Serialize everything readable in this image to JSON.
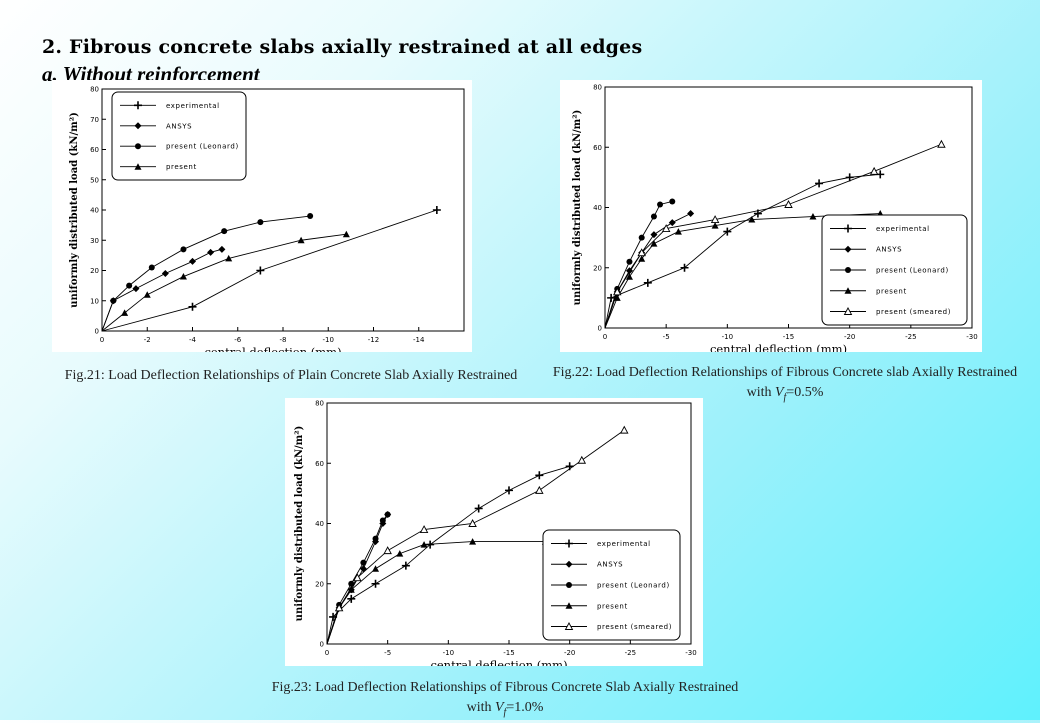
{
  "slide": {
    "title": "2. Fibrous concrete slabs axially restrained at all edges",
    "subtitle": "a. Without reinforcement"
  },
  "captions": [
    {
      "text": "Fig.21: Load Deflection Relationships of Plain Concrete Slab Axially Restrained",
      "var": "",
      "tail": ""
    },
    {
      "text": "Fig.22: Load Deflection Relationships of Fibrous Concrete slab Axially Restrained with ",
      "var": "V",
      "sub": "f",
      "tail": "=0.5%"
    },
    {
      "text": "Fig.23: Load Deflection Relationships of Fibrous Concrete Slab Axially Restrained with ",
      "var": "V",
      "sub": "f",
      "tail": "=1.0%"
    }
  ],
  "colors": {
    "line": "#000000",
    "panel_bg": "#ffffff"
  },
  "chart_data": [
    {
      "type": "line",
      "xlabel": "central deflection (mm)",
      "ylabel": "uniformly distributed load (kN/m²)",
      "xlim": [
        0,
        -16
      ],
      "ylim": [
        0,
        80
      ],
      "xticks": [
        0,
        -2,
        -4,
        -6,
        -8,
        -10,
        -12,
        -14
      ],
      "xtick_labels": [
        "0",
        "-2",
        "-4",
        "-6",
        "-8",
        "-10",
        "-12",
        "-14"
      ],
      "yticks": [
        0,
        10,
        20,
        30,
        40,
        50,
        60,
        70,
        80
      ],
      "ytick_labels": [
        "0",
        "10",
        "20",
        "30",
        "40",
        "50",
        "60",
        "70",
        "80"
      ],
      "legend_position": "top-left",
      "series": [
        {
          "name": "experimental",
          "marker": "plus",
          "x": [
            0,
            -4,
            -7,
            -14.8
          ],
          "y": [
            0,
            8,
            20,
            40
          ]
        },
        {
          "name": "ANSYS",
          "marker": "diamond",
          "x": [
            0,
            -0.5,
            -1.5,
            -2.8,
            -4.0,
            -4.8,
            -5.3
          ],
          "y": [
            0,
            10,
            14,
            19,
            23,
            26,
            27
          ]
        },
        {
          "name": "present (Leonard)",
          "marker": "circle",
          "x": [
            0,
            -0.5,
            -1.2,
            -2.2,
            -3.6,
            -5.4,
            -7.0,
            -9.2
          ],
          "y": [
            0,
            10,
            15,
            21,
            27,
            33,
            36,
            38
          ]
        },
        {
          "name": "present",
          "marker": "triangle",
          "x": [
            0,
            -1.0,
            -2.0,
            -3.6,
            -5.6,
            -8.8,
            -10.8
          ],
          "y": [
            0,
            6,
            12,
            18,
            24,
            30,
            32
          ]
        }
      ]
    },
    {
      "type": "line",
      "xlabel": "central deflection (mm)",
      "ylabel": "uniformly distributed load (kN/m²)",
      "xlim": [
        0,
        -30
      ],
      "ylim": [
        0,
        80
      ],
      "xticks": [
        0,
        -5,
        -10,
        -15,
        -20,
        -25,
        -30
      ],
      "xtick_labels": [
        "0",
        "-5",
        "-10",
        "-15",
        "-20",
        "-25",
        "-30"
      ],
      "yticks": [
        0,
        20,
        40,
        60,
        80
      ],
      "ytick_labels": [
        "0",
        "20",
        "40",
        "60",
        "80"
      ],
      "legend_position": "bottom-right",
      "series": [
        {
          "name": "experimental",
          "marker": "plus",
          "x": [
            0,
            -0.5,
            -3.5,
            -6.5,
            -10,
            -12.5,
            -17.5,
            -20,
            -22.5
          ],
          "y": [
            0,
            10,
            15,
            20,
            32,
            38,
            48,
            50,
            51
          ]
        },
        {
          "name": "ANSYS",
          "marker": "diamond",
          "x": [
            0,
            -1,
            -2,
            -3,
            -4,
            -5.5,
            -7
          ],
          "y": [
            0,
            12,
            19,
            25,
            31,
            35,
            38
          ]
        },
        {
          "name": "present (Leonard)",
          "marker": "circle",
          "x": [
            0,
            -1,
            -2,
            -3,
            -4,
            -4.5,
            -5.5
          ],
          "y": [
            0,
            13,
            22,
            30,
            37,
            41,
            42
          ]
        },
        {
          "name": "present",
          "marker": "triangle",
          "x": [
            0,
            -1,
            -2,
            -3,
            -4,
            -6,
            -9,
            -12,
            -17,
            -22.5
          ],
          "y": [
            0,
            10,
            17,
            23,
            28,
            32,
            34,
            36,
            37,
            38
          ]
        },
        {
          "name": "present (smeared)",
          "marker": "triangle-open",
          "x": [
            0,
            -1,
            -3,
            -5,
            -9,
            -15,
            -22,
            -27.5
          ],
          "y": [
            0,
            12,
            25,
            33,
            36,
            41,
            52,
            61
          ]
        }
      ]
    },
    {
      "type": "line",
      "xlabel": "central deflection (mm)",
      "ylabel": "uniformly distributed load (kN/m²)",
      "xlim": [
        0,
        -30
      ],
      "ylim": [
        0,
        80
      ],
      "xticks": [
        0,
        -5,
        -10,
        -15,
        -20,
        -25,
        -30
      ],
      "xtick_labels": [
        "0",
        "-5",
        "-10",
        "-15",
        "-20",
        "-25",
        "-30"
      ],
      "yticks": [
        0,
        20,
        40,
        60,
        80
      ],
      "ytick_labels": [
        "0",
        "20",
        "40",
        "60",
        "80"
      ],
      "legend_position": "bottom-right",
      "series": [
        {
          "name": "experimental",
          "marker": "plus",
          "x": [
            0,
            -0.5,
            -2,
            -4,
            -6.5,
            -8.5,
            -12.5,
            -15,
            -17.5,
            -20
          ],
          "y": [
            0,
            9,
            15,
            20,
            26,
            33,
            45,
            51,
            56,
            59
          ]
        },
        {
          "name": "ANSYS",
          "marker": "diamond",
          "x": [
            0,
            -1,
            -2,
            -3,
            -4,
            -4.6,
            -5
          ],
          "y": [
            0,
            12,
            18,
            25,
            34,
            40,
            43
          ]
        },
        {
          "name": "present (Leonard)",
          "marker": "circle",
          "x": [
            0,
            -1,
            -2,
            -3,
            -4,
            -4.6,
            -5
          ],
          "y": [
            0,
            13,
            20,
            27,
            35,
            41,
            43
          ]
        },
        {
          "name": "present",
          "marker": "triangle",
          "x": [
            0,
            -1,
            -2,
            -4,
            -6,
            -8,
            -12,
            -18,
            -23.5
          ],
          "y": [
            0,
            12,
            18,
            25,
            30,
            33,
            34,
            34,
            35
          ]
        },
        {
          "name": "present (smeared)",
          "marker": "triangle-open",
          "x": [
            0,
            -1,
            -2.5,
            -5,
            -8,
            -12,
            -17.5,
            -21,
            -24.5
          ],
          "y": [
            0,
            12,
            22,
            31,
            38,
            40,
            51,
            61,
            71
          ]
        }
      ]
    }
  ]
}
